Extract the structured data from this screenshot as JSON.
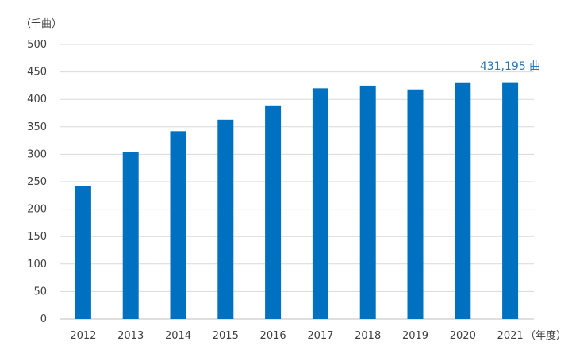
{
  "chart_data": {
    "type": "bar",
    "categories": [
      "2012",
      "2013",
      "2014",
      "2015",
      "2016",
      "2017",
      "2018",
      "2019",
      "2020",
      "2021"
    ],
    "values": [
      242,
      304,
      342,
      363,
      389,
      420,
      425,
      418,
      431,
      431.195
    ],
    "ylabel": "（千曲）",
    "xlabel": "（年度）",
    "ylim": [
      0,
      500
    ],
    "yticks": [
      0,
      50,
      100,
      150,
      200,
      250,
      300,
      350,
      400,
      450,
      500
    ],
    "grid": true,
    "annotation": {
      "text": "431,195 曲",
      "category": "2021"
    },
    "colors": {
      "bar": "#0070C0",
      "annotation": "#2E75B6",
      "grid": "#D9D9D9",
      "axis": "#BFBFBF",
      "text": "#404040"
    }
  }
}
